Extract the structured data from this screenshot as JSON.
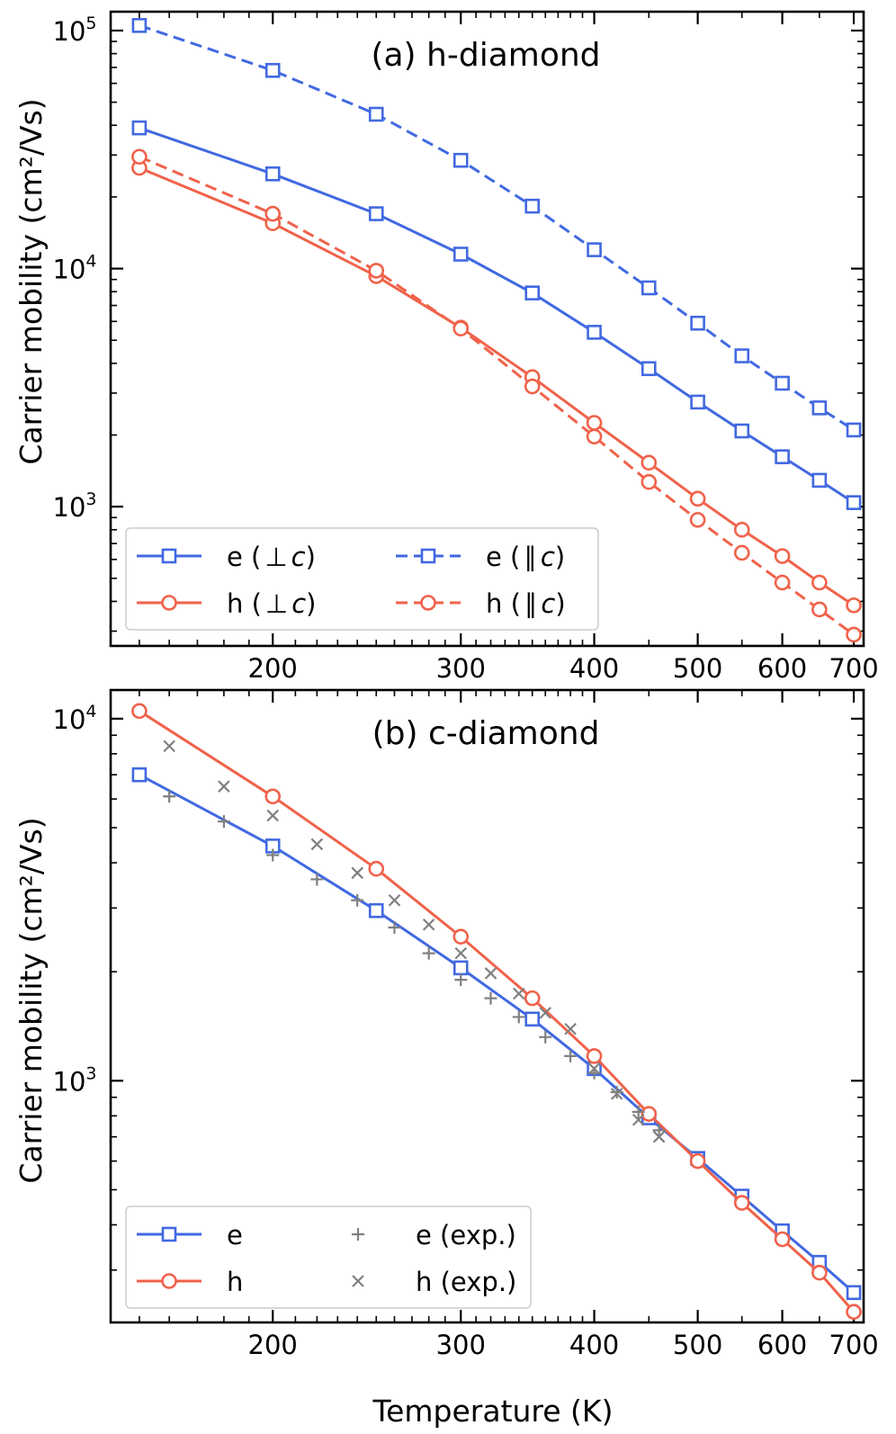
{
  "colors": {
    "electron": "#4169e1",
    "hole": "#f0624a",
    "experiment": "#808080",
    "frame": "#000000"
  },
  "x_axis_label": "Temperature (K)",
  "chart_data": [
    {
      "type": "line",
      "title": "(a) h-diamond",
      "xlabel": "",
      "ylabel": "Carrier mobility (cm²/Vs)",
      "xscale": "log",
      "yscale": "log",
      "xlim": [
        141,
        715
      ],
      "ylim": [
        260,
        120000
      ],
      "xticks": [
        200,
        300,
        400,
        500,
        600,
        700
      ],
      "yticks": [
        {
          "value": 1000,
          "base": "10",
          "exp": "3"
        },
        {
          "value": 10000,
          "base": "10",
          "exp": "4"
        },
        {
          "value": 100000,
          "base": "10",
          "exp": "5"
        }
      ],
      "legend": {
        "placement": "bottom-left",
        "columns": 2
      },
      "series": [
        {
          "name": "e (⊥c)",
          "label_main": "e (",
          "label_rel": "⊥",
          "label_var": "c",
          "label_end": ")",
          "carrier": "electron",
          "style": "solid",
          "marker": "square",
          "x": [
            150,
            200,
            250,
            300,
            350,
            400,
            450,
            500,
            550,
            600,
            650,
            700
          ],
          "values": [
            39000,
            25000,
            17000,
            11500,
            7900,
            5400,
            3800,
            2750,
            2080,
            1620,
            1290,
            1040
          ]
        },
        {
          "name": "h (⊥c)",
          "label_main": "h (",
          "label_rel": "⊥",
          "label_var": "c",
          "label_end": ")",
          "carrier": "hole",
          "style": "solid",
          "marker": "circle",
          "x": [
            150,
            200,
            250,
            300,
            350,
            400,
            450,
            500,
            550,
            600,
            650,
            700
          ],
          "values": [
            26500,
            15500,
            9300,
            5650,
            3500,
            2250,
            1530,
            1080,
            800,
            620,
            480,
            385
          ]
        },
        {
          "name": "e (∥c)",
          "label_main": "e (",
          "label_rel": "∥",
          "label_var": "c",
          "label_end": ")",
          "carrier": "electron",
          "style": "dashed",
          "marker": "square",
          "x": [
            150,
            200,
            250,
            300,
            350,
            400,
            450,
            500,
            550,
            600,
            650,
            700
          ],
          "values": [
            105000,
            68000,
            44500,
            28500,
            18300,
            12000,
            8300,
            5900,
            4300,
            3300,
            2600,
            2100
          ]
        },
        {
          "name": "h (∥c)",
          "label_main": "h (",
          "label_rel": "∥",
          "label_var": "c",
          "label_end": ")",
          "carrier": "hole",
          "style": "dashed",
          "marker": "circle",
          "x": [
            150,
            200,
            250,
            300,
            350,
            400,
            450,
            500,
            550,
            600,
            650,
            700
          ],
          "values": [
            29500,
            17000,
            9800,
            5600,
            3200,
            1970,
            1270,
            880,
            640,
            480,
            370,
            290
          ]
        }
      ]
    },
    {
      "type": "line",
      "title": "(b) c-diamond",
      "xlabel": "Temperature (K)",
      "ylabel": "Carrier mobility (cm²/Vs)",
      "xscale": "log",
      "yscale": "log",
      "xlim": [
        141,
        715
      ],
      "ylim": [
        215,
        12000
      ],
      "xticks": [
        200,
        300,
        400,
        500,
        600,
        700
      ],
      "yticks": [
        {
          "value": 1000,
          "base": "10",
          "exp": "3"
        },
        {
          "value": 10000,
          "base": "10",
          "exp": "4"
        }
      ],
      "legend": {
        "placement": "bottom-left",
        "columns": 2
      },
      "series": [
        {
          "name": "e",
          "carrier": "electron",
          "style": "solid",
          "marker": "square",
          "x": [
            150,
            200,
            250,
            300,
            350,
            400,
            450,
            500,
            550,
            600,
            650,
            700
          ],
          "values": [
            7000,
            4450,
            2950,
            2050,
            1480,
            1080,
            790,
            610,
            480,
            385,
            315,
            260
          ]
        },
        {
          "name": "h",
          "carrier": "hole",
          "style": "solid",
          "marker": "circle",
          "x": [
            150,
            200,
            250,
            300,
            350,
            400,
            450,
            500,
            550,
            600,
            650,
            700
          ],
          "values": [
            10500,
            6100,
            3850,
            2500,
            1690,
            1170,
            810,
            600,
            460,
            365,
            295,
            230
          ]
        },
        {
          "name": "e (exp.)",
          "carrier": "experiment",
          "style": "none",
          "marker": "plus",
          "x": [
            160,
            180,
            200,
            220,
            240,
            260,
            280,
            300,
            320,
            340,
            360,
            380,
            400,
            420,
            440,
            460
          ],
          "values": [
            6100,
            5200,
            4200,
            3600,
            3150,
            2650,
            2250,
            1900,
            1690,
            1500,
            1320,
            1170,
            1050,
            930,
            820,
            730
          ]
        },
        {
          "name": "h (exp.)",
          "carrier": "experiment",
          "style": "none",
          "marker": "cross",
          "x": [
            160,
            180,
            200,
            220,
            240,
            260,
            280,
            300,
            320,
            340,
            360,
            380,
            400,
            420,
            440,
            460
          ],
          "values": [
            8400,
            6500,
            5400,
            4500,
            3750,
            3150,
            2700,
            2250,
            1980,
            1740,
            1540,
            1390,
            1080,
            920,
            780,
            700
          ]
        }
      ]
    }
  ]
}
